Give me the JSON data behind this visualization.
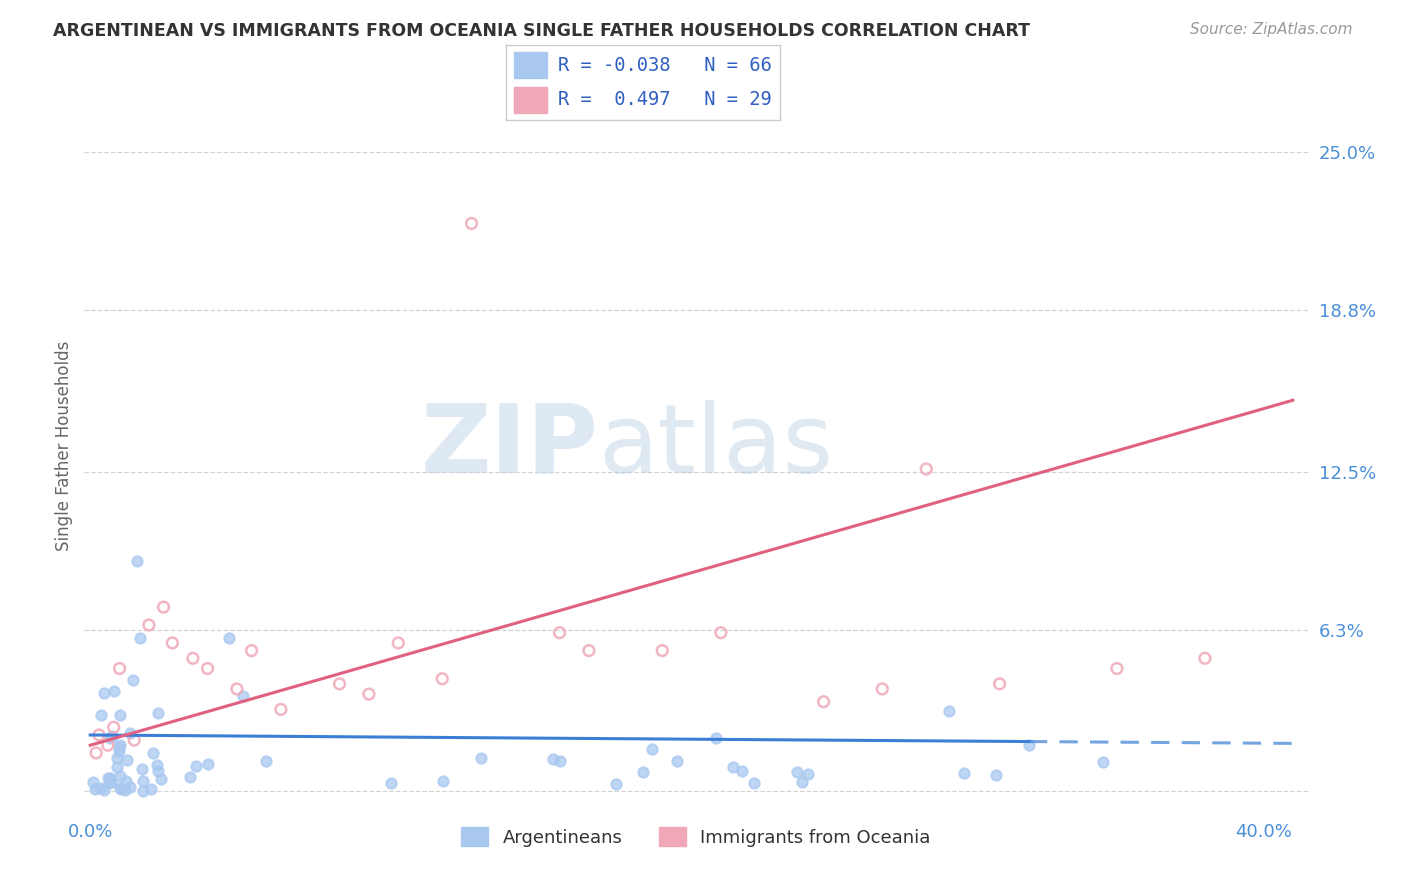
{
  "title": "ARGENTINEAN VS IMMIGRANTS FROM OCEANIA SINGLE FATHER HOUSEHOLDS CORRELATION CHART",
  "source": "Source: ZipAtlas.com",
  "ylabel": "Single Father Households",
  "y_ticks": [
    0.0,
    0.063,
    0.125,
    0.188,
    0.25
  ],
  "y_tick_labels": [
    "",
    "6.3%",
    "12.5%",
    "18.8%",
    "25.0%"
  ],
  "x_ticks": [
    0.0,
    0.1,
    0.2,
    0.3,
    0.4
  ],
  "x_tick_labels": [
    "0.0%",
    "",
    "",
    "",
    "40.0%"
  ],
  "xlim": [
    -0.002,
    0.415
  ],
  "ylim": [
    -0.008,
    0.278
  ],
  "arg_scatter_color": "#a8c8f0",
  "oceania_scatter_color": "#f0a8b8",
  "arg_line_color": "#3a7fd5",
  "oceania_line_color": "#e06080",
  "arg_R": -0.038,
  "arg_N": 66,
  "oceania_R": 0.497,
  "oceania_N": 29,
  "legend_R_color": "#3060c0",
  "watermark_zip": "ZIP",
  "watermark_atlas": "atlas",
  "background_color": "#ffffff",
  "grid_color": "#c8c8c8",
  "title_color": "#333333",
  "axis_label_color": "#4a90d9",
  "source_color": "#999999",
  "arg_line_end_solid": 0.32,
  "arg_line_end_dashed": 0.41,
  "oce_line_start": 0.0,
  "oce_line_end": 0.41
}
